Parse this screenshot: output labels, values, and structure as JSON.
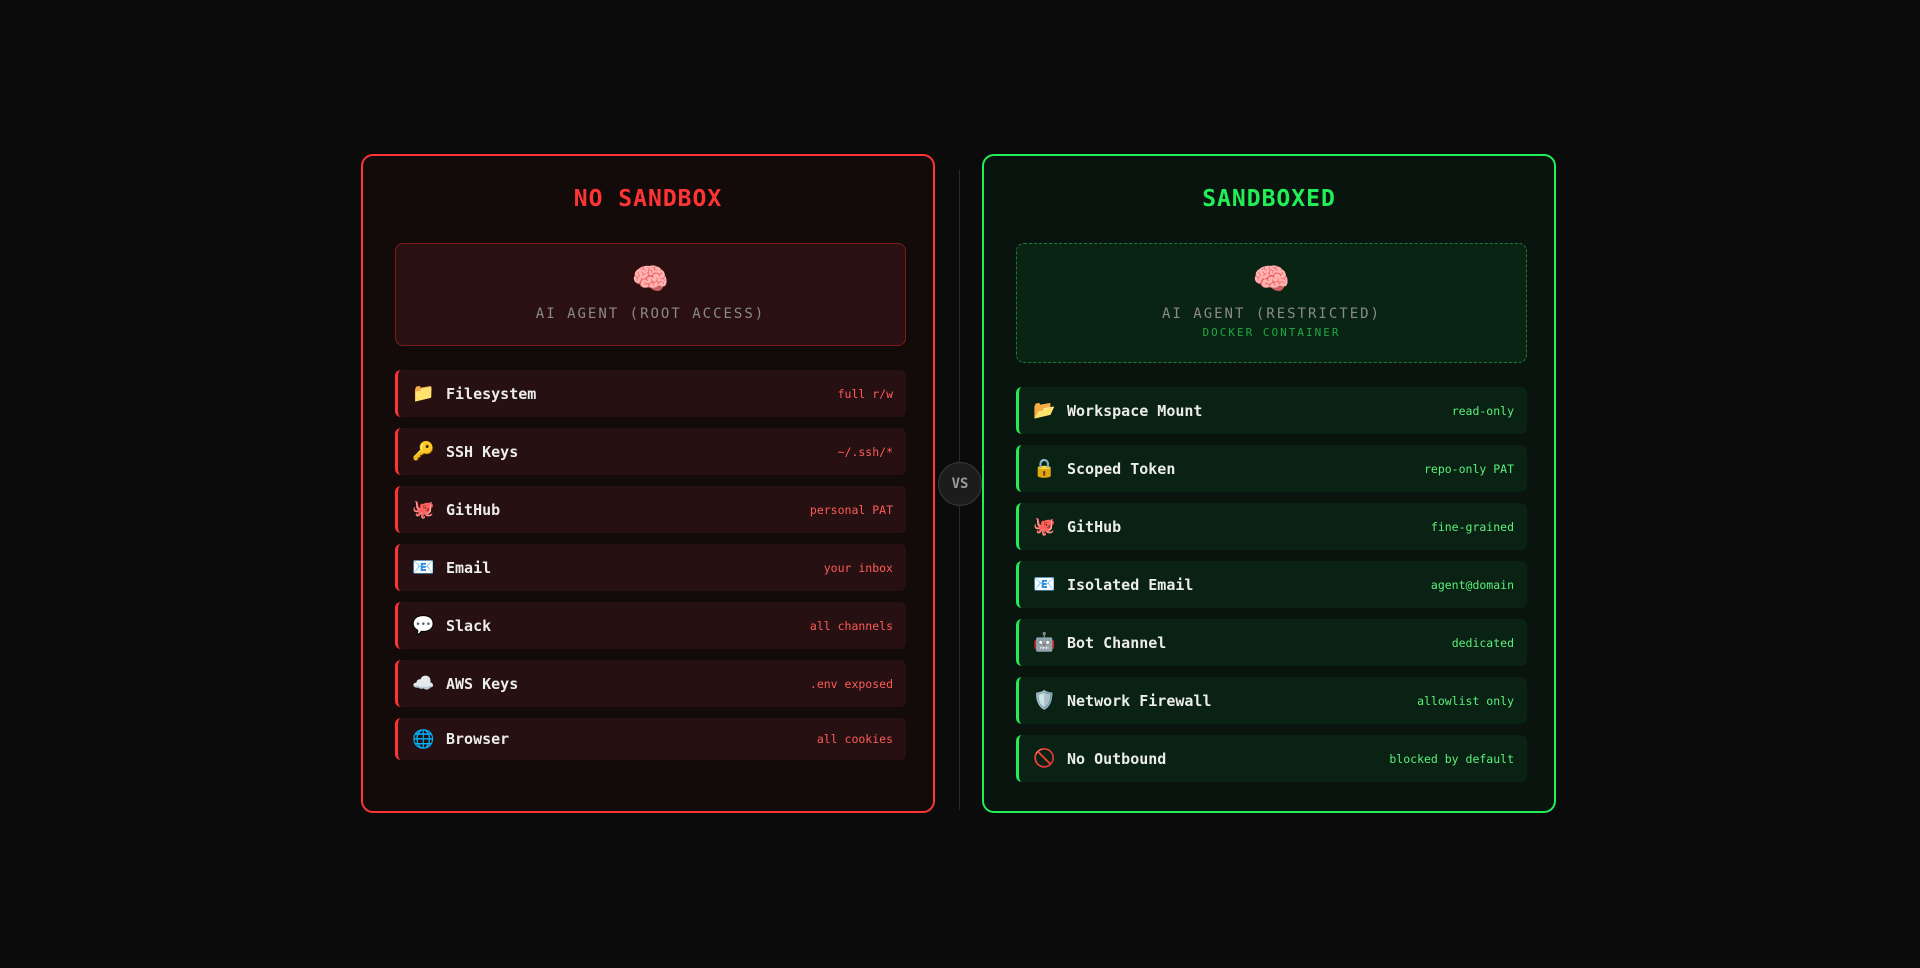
{
  "colors": {
    "background": "#0b0b0b",
    "danger": "#ff3535",
    "safe": "#22ee55"
  },
  "left": {
    "title": "NO SANDBOX",
    "agent": {
      "icon": "🧠",
      "label": "AI AGENT (ROOT ACCESS)"
    },
    "items": [
      {
        "icon": "📁",
        "name": "Filesystem",
        "value": "full r/w"
      },
      {
        "icon": "🔑",
        "name": "SSH Keys",
        "value": "~/.ssh/*"
      },
      {
        "icon": "🐙",
        "name": "GitHub",
        "value": "personal PAT"
      },
      {
        "icon": "📧",
        "name": "Email",
        "value": "your inbox"
      },
      {
        "icon": "💬",
        "name": "Slack",
        "value": "all channels"
      },
      {
        "icon": "☁️",
        "name": "AWS Keys",
        "value": ".env exposed"
      },
      {
        "icon": "🌐",
        "name": "Browser",
        "value": "all cookies"
      }
    ]
  },
  "vs": "VS",
  "right": {
    "title": "SANDBOXED",
    "agent": {
      "icon": "🧠",
      "label": "AI AGENT (RESTRICTED)",
      "sublabel": "DOCKER CONTAINER"
    },
    "items": [
      {
        "icon": "📂",
        "name": "Workspace Mount",
        "value": "read-only"
      },
      {
        "icon": "🔒",
        "name": "Scoped Token",
        "value": "repo-only PAT"
      },
      {
        "icon": "🐙",
        "name": "GitHub",
        "value": "fine-grained"
      },
      {
        "icon": "📧",
        "name": "Isolated Email",
        "value": "agent@domain"
      },
      {
        "icon": "🤖",
        "name": "Bot Channel",
        "value": "dedicated"
      },
      {
        "icon": "🛡️",
        "name": "Network Firewall",
        "value": "allowlist only"
      },
      {
        "icon": "🚫",
        "name": "No Outbound",
        "value": "blocked by default"
      }
    ]
  }
}
